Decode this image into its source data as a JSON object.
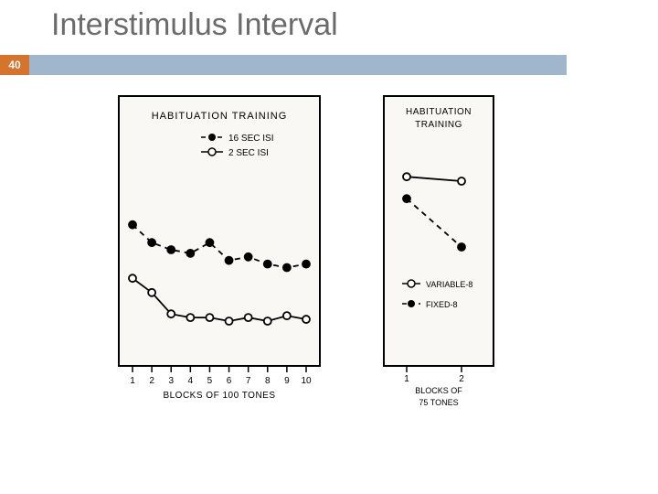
{
  "title": "Interstimulus Interval",
  "page_number": "40",
  "header_bar_color": "#9fb6cc",
  "badge_color": "#d6732d",
  "chart1": {
    "title": "HABITUATION TRAINING",
    "xaxis_label": "BLOCKS OF 100 TONES",
    "x_ticks": [
      1,
      2,
      3,
      4,
      5,
      6,
      7,
      8,
      9,
      10
    ],
    "ylim": [
      0,
      100
    ],
    "plot_bg": "#faf8f4",
    "border_color": "#000000",
    "legend": [
      {
        "label": "16 SEC ISI",
        "marker": "filled",
        "dash": true
      },
      {
        "label": "2 SEC ISI",
        "marker": "open",
        "dash": false
      }
    ],
    "series_filled": {
      "values": [
        74,
        64,
        60,
        58,
        64,
        54,
        56,
        52,
        50,
        52
      ],
      "color": "#000000",
      "dash": true,
      "marker_r": 4
    },
    "series_open": {
      "values": [
        44,
        36,
        24,
        22,
        22,
        20,
        22,
        20,
        23,
        21
      ],
      "color": "#000000",
      "dash": false,
      "marker_r": 4
    }
  },
  "chart2": {
    "title_top": "HABITUATION",
    "title_bot": "TRAINING",
    "xaxis_label": "BLOCKS OF",
    "xaxis_label2": "75 TONES",
    "x_ticks": [
      1,
      2
    ],
    "ylim": [
      0,
      100
    ],
    "plot_bg": "#faf8f4",
    "border_color": "#000000",
    "series_open": {
      "values": [
        82,
        80
      ],
      "color": "#000000",
      "dash": false,
      "marker_r": 4
    },
    "series_filled": {
      "values": [
        72,
        50
      ],
      "color": "#000000",
      "dash": true,
      "marker_r": 4
    },
    "legend": [
      {
        "label": "VARIABLE-8",
        "marker": "open",
        "dash": false
      },
      {
        "label": "FIXED-8",
        "marker": "filled",
        "dash": true
      }
    ]
  }
}
